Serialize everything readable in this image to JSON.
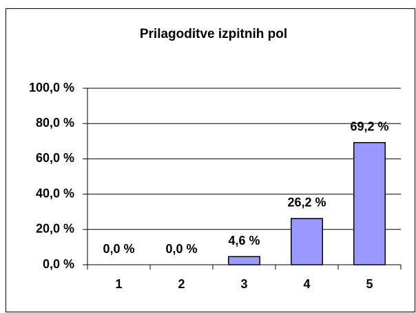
{
  "chart_data": {
    "type": "bar",
    "title": "Prilagoditve izpitnih pol",
    "categories": [
      "1",
      "2",
      "3",
      "4",
      "5"
    ],
    "values": [
      0,
      0,
      4.6,
      26.2,
      69.2
    ],
    "value_labels": [
      "0,0 %",
      "0,0 %",
      "4,6 %",
      "26,2 %",
      "69,2 %"
    ],
    "color": "#9999ff",
    "ylim": [
      0,
      100
    ],
    "yticks": [
      {
        "value": 0,
        "label": "0,0 %"
      },
      {
        "value": 20,
        "label": "20,0 %"
      },
      {
        "value": 40,
        "label": "40,0 %"
      },
      {
        "value": 60,
        "label": "60,0 %"
      },
      {
        "value": 80,
        "label": "80,0 %"
      },
      {
        "value": 100,
        "label": "100,0 %"
      }
    ],
    "grid": true
  }
}
